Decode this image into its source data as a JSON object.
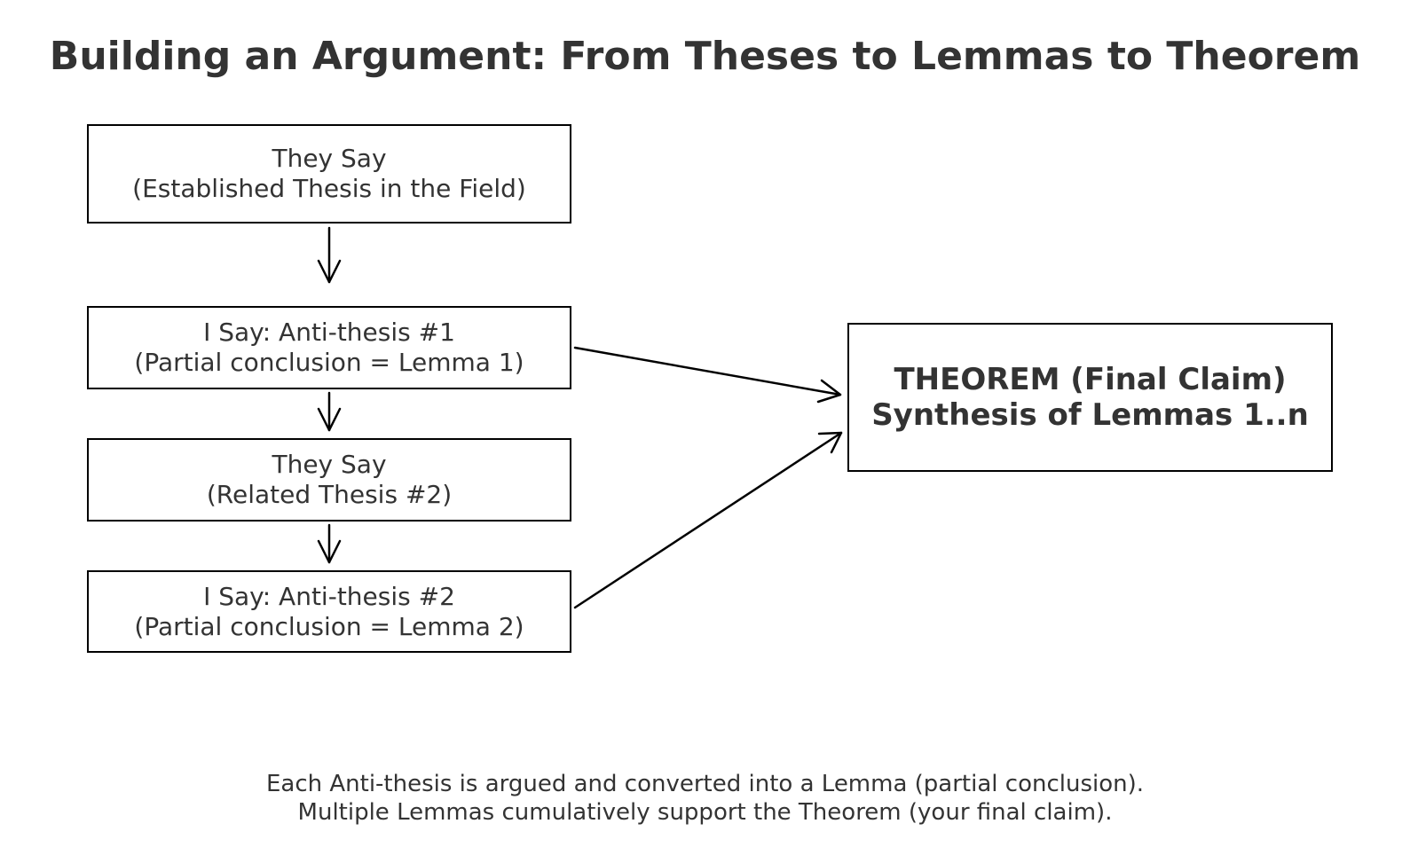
{
  "title": "Building an Argument: From Theses to Lemmas to Theorem",
  "boxes": {
    "they_say_1": {
      "line1": "They Say",
      "line2": "(Established Thesis in the Field)"
    },
    "i_say_1": {
      "line1": "I Say: Anti-thesis #1",
      "line2": "(Partial conclusion = Lemma 1)"
    },
    "they_say_2": {
      "line1": "They Say",
      "line2": "(Related Thesis #2)"
    },
    "i_say_2": {
      "line1": "I Say: Anti-thesis #2",
      "line2": "(Partial conclusion = Lemma 2)"
    },
    "theorem": {
      "line1": "THEOREM (Final Claim)",
      "line2": "Synthesis of Lemmas 1..n"
    }
  },
  "note": {
    "line1": "Each Anti-thesis is argued and converted into a Lemma (partial conclusion).",
    "line2": "Multiple Lemmas cumulatively support the Theorem (your final claim)."
  },
  "colors": {
    "border": "#000000",
    "text": "#333333",
    "background": "#ffffff"
  }
}
